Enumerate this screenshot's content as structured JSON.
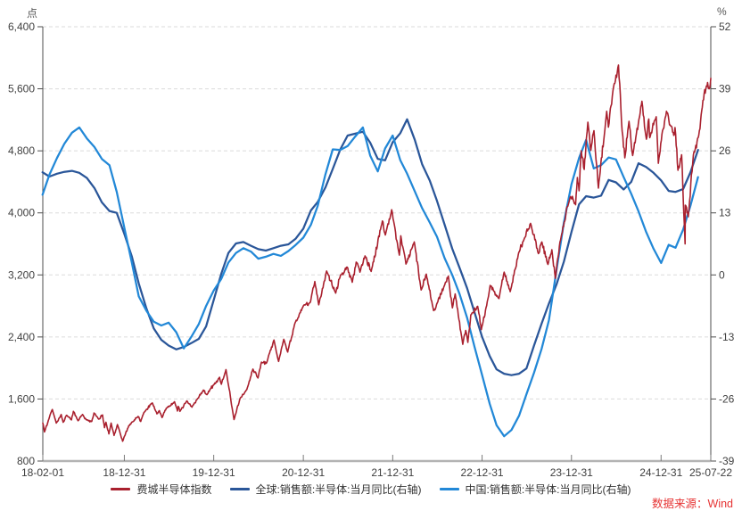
{
  "units": {
    "left": "点",
    "right": "%"
  },
  "source_note": "数据来源：Wind",
  "legend": [
    {
      "label": "费城半导体指数"
    },
    {
      "label": "全球:销售额:半导体:当月同比(右轴)"
    },
    {
      "label": "中国:销售额:半导体:当月同比(右轴)"
    }
  ],
  "chart_data": {
    "type": "line",
    "title": "",
    "grid": true,
    "left_axis": {
      "label": "点",
      "min": 800,
      "max": 6400,
      "ticks": [
        6400,
        5600,
        4800,
        4000,
        3200,
        2400,
        1600,
        800
      ]
    },
    "right_axis": {
      "label": "%",
      "min": -39,
      "max": 52,
      "ticks": [
        52,
        39,
        26,
        13,
        0,
        -13,
        -26,
        -39
      ]
    },
    "x_axis": {
      "start_date": "2018-02-01",
      "end_date": "2025-07-22",
      "ticks": [
        {
          "label": "18-02-01",
          "date": "2018-02-01"
        },
        {
          "label": "18-12-31",
          "date": "2018-12-31"
        },
        {
          "label": "19-12-31",
          "date": "2019-12-31"
        },
        {
          "label": "20-12-31",
          "date": "2020-12-31"
        },
        {
          "label": "21-12-31",
          "date": "2021-12-31"
        },
        {
          "label": "22-12-31",
          "date": "2022-12-31"
        },
        {
          "label": "23-12-31",
          "date": "2023-12-31"
        },
        {
          "label": "24-12-31",
          "date": "2024-12-31"
        },
        {
          "label": "25-07-22",
          "date": "2025-07-22"
        }
      ]
    },
    "series": [
      {
        "name": "全球:销售额:半导体:当月同比(右轴)",
        "axis": "right",
        "color": "#2a5699",
        "width": 2.25,
        "kind": "monthly",
        "start_month": "2018-01",
        "values": [
          21.5,
          20.6,
          21.2,
          21.6,
          21.8,
          21.4,
          20.3,
          18.2,
          15.2,
          13.4,
          13.0,
          8.6,
          3.8,
          -1.8,
          -7.0,
          -11.2,
          -13.6,
          -14.8,
          -15.6,
          -15.1,
          -14.3,
          -13.4,
          -10.8,
          -5.3,
          0.3,
          4.6,
          6.6,
          6.9,
          6.1,
          5.4,
          5.1,
          5.6,
          6.1,
          6.4,
          7.6,
          9.7,
          13.5,
          15.3,
          18.3,
          22.2,
          26.3,
          29.2,
          29.6,
          30.0,
          27.7,
          24.3,
          24.0,
          27.8,
          29.7,
          32.6,
          28.3,
          23.2,
          19.8,
          15.5,
          10.5,
          5.5,
          1.5,
          -2.8,
          -7.8,
          -13.0,
          -17.0,
          -19.8,
          -20.7,
          -21.0,
          -20.7,
          -19.6,
          -14.8,
          -10.2,
          -6.0,
          -2.0,
          2.8,
          9.0,
          14.8,
          16.5,
          16.2,
          16.6,
          19.9,
          19.4,
          17.9,
          19.5,
          23.4,
          22.6,
          21.4,
          19.8,
          17.6,
          17.4,
          18.0,
          21.5,
          26.2
        ]
      },
      {
        "name": "中国:销售额:半导体:当月同比(右轴)",
        "axis": "right",
        "color": "#2288d7",
        "width": 2.25,
        "kind": "monthly",
        "start_month": "2018-01",
        "values": [
          16.8,
          21.0,
          24.5,
          27.5,
          29.8,
          30.9,
          28.6,
          26.8,
          24.3,
          23.0,
          17.4,
          9.9,
          2.5,
          -4.5,
          -7.5,
          -9.8,
          -10.6,
          -10.0,
          -12.0,
          -15.4,
          -13.0,
          -10.3,
          -6.5,
          -3.3,
          -0.8,
          2.6,
          4.6,
          5.6,
          4.9,
          3.4,
          3.8,
          4.4,
          4.0,
          5.0,
          6.3,
          7.8,
          10.5,
          14.5,
          21.0,
          26.3,
          26.2,
          27.0,
          29.0,
          30.9,
          25.0,
          21.7,
          26.5,
          29.2,
          24.0,
          21.2,
          17.5,
          14.0,
          11.0,
          8.0,
          3.5,
          0.0,
          -4.0,
          -9.0,
          -15.0,
          -21.0,
          -27.0,
          -31.5,
          -33.8,
          -32.5,
          -29.5,
          -25.0,
          -20.5,
          -15.5,
          -9.5,
          1.0,
          11.0,
          19.0,
          24.5,
          28.3,
          22.3,
          23.0,
          24.6,
          24.2,
          20.5,
          17.0,
          13.3,
          9.0,
          5.5,
          2.5,
          6.3,
          5.7,
          9.5,
          14.5,
          20.5
        ]
      },
      {
        "name": "费城半导体指数",
        "axis": "left",
        "color": "#a9202e",
        "width": 1.6,
        "kind": "daily",
        "points": [
          [
            "2018-02-01",
            1290
          ],
          [
            "2018-02-08",
            1175
          ],
          [
            "2018-02-26",
            1345
          ],
          [
            "2018-03-12",
            1465
          ],
          [
            "2018-03-28",
            1290
          ],
          [
            "2018-04-17",
            1400
          ],
          [
            "2018-04-25",
            1300
          ],
          [
            "2018-05-09",
            1390
          ],
          [
            "2018-05-29",
            1330
          ],
          [
            "2018-06-06",
            1440
          ],
          [
            "2018-06-25",
            1320
          ],
          [
            "2018-07-13",
            1400
          ],
          [
            "2018-07-30",
            1330
          ],
          [
            "2018-08-20",
            1310
          ],
          [
            "2018-08-29",
            1420
          ],
          [
            "2018-09-17",
            1340
          ],
          [
            "2018-10-03",
            1395
          ],
          [
            "2018-10-11",
            1230
          ],
          [
            "2018-10-17",
            1300
          ],
          [
            "2018-10-29",
            1150
          ],
          [
            "2018-11-07",
            1290
          ],
          [
            "2018-11-19",
            1130
          ],
          [
            "2018-12-03",
            1270
          ],
          [
            "2018-12-24",
            1055
          ],
          [
            "2019-01-18",
            1255
          ],
          [
            "2019-02-05",
            1310
          ],
          [
            "2019-02-25",
            1375
          ],
          [
            "2019-03-08",
            1310
          ],
          [
            "2019-03-21",
            1425
          ],
          [
            "2019-04-24",
            1550
          ],
          [
            "2019-05-13",
            1410
          ],
          [
            "2019-05-23",
            1450
          ],
          [
            "2019-06-03",
            1360
          ],
          [
            "2019-06-20",
            1480
          ],
          [
            "2019-07-24",
            1565
          ],
          [
            "2019-08-05",
            1445
          ],
          [
            "2019-08-08",
            1505
          ],
          [
            "2019-08-15",
            1440
          ],
          [
            "2019-09-12",
            1575
          ],
          [
            "2019-10-03",
            1495
          ],
          [
            "2019-10-25",
            1600
          ],
          [
            "2019-11-19",
            1715
          ],
          [
            "2019-12-03",
            1655
          ],
          [
            "2019-12-17",
            1730
          ],
          [
            "2020-01-02",
            1790
          ],
          [
            "2020-01-24",
            1880
          ],
          [
            "2020-01-31",
            1790
          ],
          [
            "2020-02-19",
            1979
          ],
          [
            "2020-03-23",
            1335
          ],
          [
            "2020-04-17",
            1610
          ],
          [
            "2020-05-14",
            1720
          ],
          [
            "2020-06-08",
            1985
          ],
          [
            "2020-06-29",
            1870
          ],
          [
            "2020-07-13",
            2075
          ],
          [
            "2020-08-03",
            2065
          ],
          [
            "2020-09-02",
            2360
          ],
          [
            "2020-09-21",
            2085
          ],
          [
            "2020-10-12",
            2370
          ],
          [
            "2020-10-28",
            2205
          ],
          [
            "2020-11-27",
            2580
          ],
          [
            "2020-12-31",
            2800
          ],
          [
            "2021-01-29",
            2850
          ],
          [
            "2021-02-16",
            3115
          ],
          [
            "2021-03-04",
            2815
          ],
          [
            "2021-04-05",
            3250
          ],
          [
            "2021-05-12",
            2965
          ],
          [
            "2021-06-01",
            3200
          ],
          [
            "2021-06-28",
            3300
          ],
          [
            "2021-07-19",
            3105
          ],
          [
            "2021-08-04",
            3365
          ],
          [
            "2021-08-19",
            3235
          ],
          [
            "2021-09-09",
            3445
          ],
          [
            "2021-10-04",
            3245
          ],
          [
            "2021-11-19",
            3895
          ],
          [
            "2021-12-01",
            3715
          ],
          [
            "2021-12-27",
            4040
          ],
          [
            "2022-01-27",
            3455
          ],
          [
            "2022-02-02",
            3705
          ],
          [
            "2022-02-23",
            3340
          ],
          [
            "2022-03-29",
            3625
          ],
          [
            "2022-04-26",
            3005
          ],
          [
            "2022-05-17",
            3210
          ],
          [
            "2022-06-16",
            2740
          ],
          [
            "2022-07-01",
            2840
          ],
          [
            "2022-07-29",
            3055
          ],
          [
            "2022-08-15",
            3185
          ],
          [
            "2022-09-01",
            2775
          ],
          [
            "2022-09-12",
            2955
          ],
          [
            "2022-10-13",
            2305
          ],
          [
            "2022-10-25",
            2485
          ],
          [
            "2022-11-03",
            2330
          ],
          [
            "2022-11-15",
            2685
          ],
          [
            "2022-12-13",
            2795
          ],
          [
            "2022-12-28",
            2495
          ],
          [
            "2023-01-26",
            2920
          ],
          [
            "2023-02-02",
            3065
          ],
          [
            "2023-03-10",
            2895
          ],
          [
            "2023-03-31",
            3235
          ],
          [
            "2023-04-25",
            2985
          ],
          [
            "2023-05-30",
            3490
          ],
          [
            "2023-06-20",
            3655
          ],
          [
            "2023-07-17",
            3865
          ],
          [
            "2023-08-18",
            3475
          ],
          [
            "2023-09-01",
            3625
          ],
          [
            "2023-09-26",
            3335
          ],
          [
            "2023-10-12",
            3525
          ],
          [
            "2023-10-26",
            3155
          ],
          [
            "2023-11-14",
            3625
          ],
          [
            "2023-12-06",
            3920
          ],
          [
            "2023-12-11",
            4060
          ],
          [
            "2023-12-27",
            4210
          ],
          [
            "2024-01-17",
            4105
          ],
          [
            "2024-01-24",
            4455
          ],
          [
            "2024-01-31",
            4285
          ],
          [
            "2024-02-09",
            4800
          ],
          [
            "2024-02-21",
            4560
          ],
          [
            "2024-03-01",
            4960
          ],
          [
            "2024-03-07",
            5170
          ],
          [
            "2024-03-19",
            4805
          ],
          [
            "2024-04-01",
            5060
          ],
          [
            "2024-04-19",
            4320
          ],
          [
            "2024-05-23",
            5310
          ],
          [
            "2024-05-30",
            5105
          ],
          [
            "2024-06-20",
            5625
          ],
          [
            "2024-07-10",
            5905
          ],
          [
            "2024-07-25",
            5055
          ],
          [
            "2024-08-05",
            4710
          ],
          [
            "2024-08-22",
            5180
          ],
          [
            "2024-09-06",
            4740
          ],
          [
            "2024-10-14",
            5440
          ],
          [
            "2024-11-01",
            4950
          ],
          [
            "2024-11-11",
            5210
          ],
          [
            "2024-11-15",
            4970
          ],
          [
            "2024-12-11",
            5240
          ],
          [
            "2024-12-20",
            4640
          ],
          [
            "2025-01-06",
            5060
          ],
          [
            "2025-01-22",
            5310
          ],
          [
            "2025-02-21",
            5000
          ],
          [
            "2025-02-26",
            5100
          ],
          [
            "2025-03-10",
            4550
          ],
          [
            "2025-03-25",
            4750
          ],
          [
            "2025-04-04",
            3900
          ],
          [
            "2025-04-08",
            3600
          ],
          [
            "2025-04-09",
            4100
          ],
          [
            "2025-04-21",
            3950
          ],
          [
            "2025-05-12",
            4750
          ],
          [
            "2025-06-03",
            5000
          ],
          [
            "2025-06-20",
            5450
          ],
          [
            "2025-07-09",
            5680
          ],
          [
            "2025-07-15",
            5600
          ],
          [
            "2025-07-22",
            5735
          ]
        ]
      }
    ],
    "legend_position": "bottom",
    "source_note": "数据来源：Wind"
  }
}
